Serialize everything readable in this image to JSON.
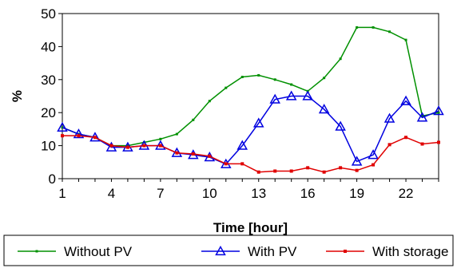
{
  "chart_data": {
    "type": "line",
    "xlabel": "Time [hour]",
    "ylabel": "%",
    "xlim": [
      1,
      24
    ],
    "ylim": [
      0,
      50
    ],
    "x_ticks": [
      1,
      4,
      7,
      10,
      13,
      16,
      19,
      22
    ],
    "y_ticks": [
      0,
      10,
      20,
      30,
      40,
      50
    ],
    "grid": false,
    "legend_position": "bottom",
    "x": [
      1,
      2,
      3,
      4,
      5,
      6,
      7,
      8,
      9,
      10,
      11,
      12,
      13,
      14,
      15,
      16,
      17,
      18,
      19,
      20,
      21,
      22,
      23,
      24
    ],
    "series": [
      {
        "name": "Without PV",
        "color": "#009000",
        "marker": "small-square",
        "values": [
          15.5,
          13.5,
          12.5,
          10,
          10,
          11,
          12,
          13.5,
          17.8,
          23.5,
          27.5,
          30.8,
          31.3,
          30,
          28.5,
          26.5,
          30.5,
          36.3,
          45.8,
          45.8,
          44.5,
          42,
          19,
          20
        ]
      },
      {
        "name": "With PV",
        "color": "#0000e0",
        "marker": "triangle",
        "values": [
          15.5,
          13.5,
          12.5,
          9.5,
          9.5,
          10,
          10,
          7.8,
          7.2,
          6.5,
          4.4,
          10,
          16.8,
          24,
          25,
          25,
          21,
          15.8,
          5.2,
          7.2,
          18.2,
          23.5,
          18.5,
          20.5
        ]
      },
      {
        "name": "With storage",
        "color": "#e00000",
        "marker": "square",
        "values": [
          13,
          13,
          12.5,
          10,
          9.5,
          10,
          10,
          7.8,
          7.5,
          6.8,
          4.5,
          4.5,
          2,
          2.3,
          2.3,
          3.3,
          2,
          3.3,
          2.5,
          4.2,
          10.3,
          12.5,
          10.5,
          11
        ]
      }
    ]
  }
}
